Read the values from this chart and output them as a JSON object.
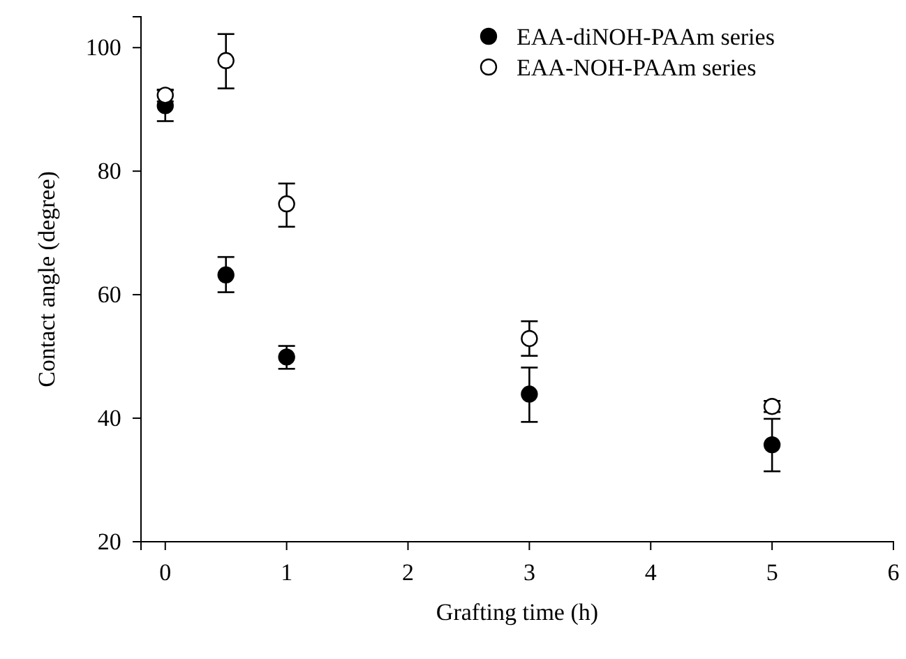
{
  "chart_data": {
    "type": "scatter",
    "xlabel": "Grafting time (h)",
    "ylabel": "Contact angle (degree)",
    "xlim": [
      -0.2,
      6
    ],
    "xticks": [
      0,
      1,
      2,
      3,
      4,
      5,
      6
    ],
    "ylim": [
      20,
      105
    ],
    "yticks": [
      20,
      40,
      60,
      80,
      100
    ],
    "grid": false,
    "legend": "top right",
    "marker": "circle",
    "series": [
      {
        "name": "EAA-diNOH-PAAm series",
        "color": "#000000",
        "x": [
          0,
          0.5,
          1,
          3,
          5
        ],
        "values": [
          90.6,
          63.2,
          49.9,
          43.9,
          35.7
        ],
        "errors": [
          [
            88.1,
            93.1
          ],
          [
            60.4,
            66.1
          ],
          [
            48.0,
            51.7
          ],
          [
            39.4,
            48.2
          ],
          [
            31.4,
            39.9
          ]
        ]
      },
      {
        "name": "EAA-NOH-PAAm series",
        "color": "#ffffff",
        "x": [
          0,
          0.5,
          1,
          3,
          5
        ],
        "values": [
          92.3,
          97.9,
          74.7,
          52.9,
          41.9
        ],
        "errors": [
          [
            91.3,
            93.2
          ],
          [
            93.4,
            102.2
          ],
          [
            71.0,
            78.0
          ],
          [
            50.1,
            55.7
          ],
          [
            41.0,
            42.8
          ]
        ]
      }
    ]
  }
}
